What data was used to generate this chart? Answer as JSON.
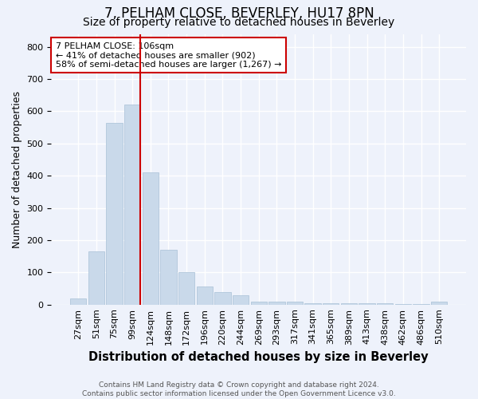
{
  "title": "7, PELHAM CLOSE, BEVERLEY, HU17 8PN",
  "subtitle": "Size of property relative to detached houses in Beverley",
  "xlabel": "Distribution of detached houses by size in Beverley",
  "ylabel": "Number of detached properties",
  "categories": [
    "27sqm",
    "51sqm",
    "75sqm",
    "99sqm",
    "124sqm",
    "148sqm",
    "172sqm",
    "196sqm",
    "220sqm",
    "244sqm",
    "269sqm",
    "293sqm",
    "317sqm",
    "341sqm",
    "365sqm",
    "389sqm",
    "413sqm",
    "438sqm",
    "462sqm",
    "486sqm",
    "510sqm"
  ],
  "values": [
    20,
    165,
    565,
    620,
    410,
    170,
    100,
    55,
    40,
    30,
    10,
    10,
    8,
    5,
    5,
    4,
    3,
    3,
    2,
    2,
    8
  ],
  "bar_color": "#c9d9ea",
  "bar_edge_color": "#a8c0d6",
  "marker_line_index": 3,
  "marker_line_color": "#cc0000",
  "annotation_line1": "7 PELHAM CLOSE: 106sqm",
  "annotation_line2": "← 41% of detached houses are smaller (902)",
  "annotation_line3": "58% of semi-detached houses are larger (1,267) →",
  "annotation_box_color": "#ffffff",
  "annotation_box_edge": "#cc0000",
  "ylim": [
    0,
    840
  ],
  "yticks": [
    0,
    100,
    200,
    300,
    400,
    500,
    600,
    700,
    800
  ],
  "title_fontsize": 12,
  "subtitle_fontsize": 10,
  "xlabel_fontsize": 10.5,
  "ylabel_fontsize": 9,
  "tick_fontsize": 8,
  "annot_fontsize": 8,
  "footer_text": "Contains HM Land Registry data © Crown copyright and database right 2024.\nContains public sector information licensed under the Open Government Licence v3.0.",
  "background_color": "#eef2fb",
  "plot_background_color": "#eef2fb",
  "grid_color": "#ffffff"
}
